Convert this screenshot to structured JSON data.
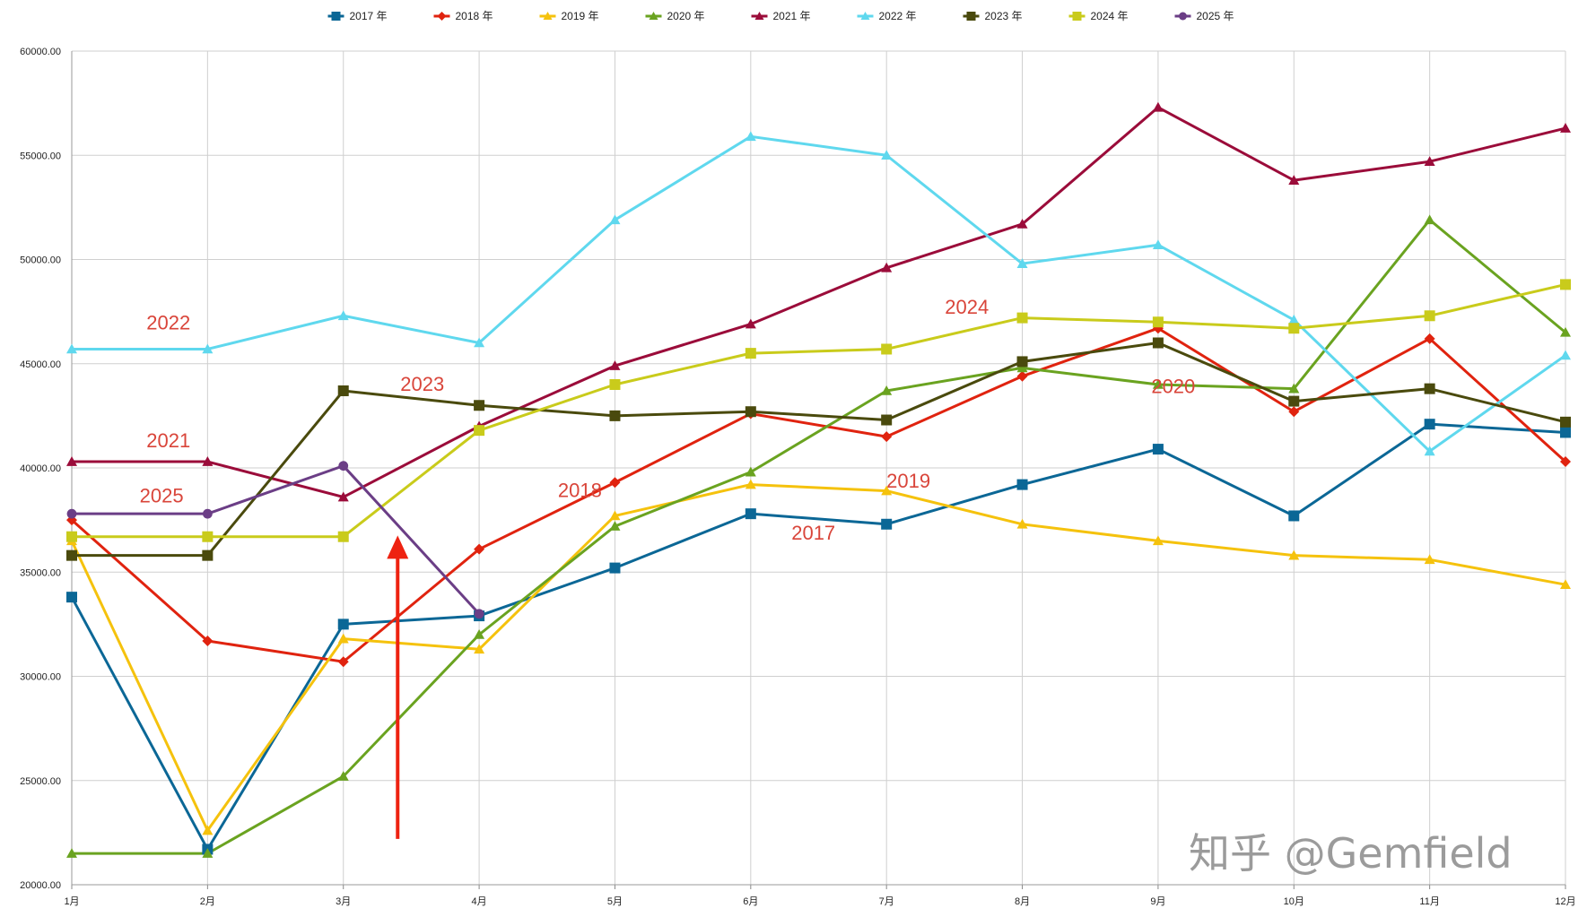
{
  "chart_data": {
    "type": "line",
    "title": "",
    "xlabel": "",
    "ylabel": "",
    "categories": [
      "1月",
      "2月",
      "3月",
      "4月",
      "5月",
      "6月",
      "7月",
      "8月",
      "9月",
      "10月",
      "11月",
      "12月"
    ],
    "ylim": [
      20000,
      60000
    ],
    "yticks": [
      20000,
      25000,
      30000,
      35000,
      40000,
      45000,
      50000,
      55000,
      60000
    ],
    "ytick_labels": [
      "20000.00",
      "25000.00",
      "30000.00",
      "35000.00",
      "40000.00",
      "45000.00",
      "50000.00",
      "55000.00",
      "60000.00"
    ],
    "grid": true,
    "legend_position": "top",
    "series": [
      {
        "name": "2017 年",
        "color": "#0b6796",
        "marker": "square",
        "values": [
          33800,
          21700,
          32500,
          32900,
          35200,
          37800,
          37300,
          39200,
          40900,
          37700,
          42100,
          41700
        ]
      },
      {
        "name": "2018 年",
        "color": "#e0230f",
        "marker": "diamond",
        "values": [
          37500,
          31700,
          30700,
          36100,
          39300,
          42600,
          41500,
          44400,
          46700,
          42700,
          46200,
          40300
        ]
      },
      {
        "name": "2019 年",
        "color": "#f5c20d",
        "marker": "triangle",
        "values": [
          36500,
          22600,
          31800,
          31300,
          37700,
          39200,
          38900,
          37300,
          36500,
          35800,
          35600,
          34400
        ]
      },
      {
        "name": "2020 年",
        "color": "#6aa320",
        "marker": "triangle",
        "values": [
          21500,
          21500,
          25200,
          32000,
          37200,
          39800,
          43700,
          44800,
          44000,
          43800,
          51900,
          46500
        ]
      },
      {
        "name": "2021 年",
        "color": "#9b0c3a",
        "marker": "triangle",
        "values": [
          40300,
          40300,
          38600,
          42000,
          44900,
          46900,
          49600,
          51700,
          57300,
          53800,
          54700,
          56300
        ]
      },
      {
        "name": "2022 年",
        "color": "#5fd8ee",
        "marker": "triangle",
        "values": [
          45700,
          45700,
          47300,
          46000,
          51900,
          55900,
          55000,
          49800,
          50700,
          47100,
          40800,
          45400
        ]
      },
      {
        "name": "2023 年",
        "color": "#4a4a0d",
        "marker": "square",
        "values": [
          35800,
          35800,
          43700,
          43000,
          42500,
          42700,
          42300,
          45100,
          46000,
          43200,
          43800,
          42200
        ]
      },
      {
        "name": "2024 年",
        "color": "#c9cb1b",
        "marker": "square",
        "values": [
          36700,
          36700,
          36700,
          41800,
          44000,
          45500,
          45700,
          47200,
          47000,
          46700,
          47300,
          48800
        ]
      },
      {
        "name": "2025 年",
        "color": "#6b3e86",
        "marker": "circle",
        "values": [
          37800,
          37800,
          40100,
          33000,
          null,
          null,
          null,
          null,
          null,
          null,
          null,
          null
        ]
      }
    ],
    "annotations": [
      {
        "text": "2022",
        "x_index": 0.55,
        "y": 46650,
        "color": "#d9453a"
      },
      {
        "text": "2021",
        "x_index": 0.55,
        "y": 41000,
        "color": "#d9453a"
      },
      {
        "text": "2025",
        "x_index": 0.5,
        "y": 38350,
        "color": "#d9453a"
      },
      {
        "text": "2023",
        "x_index": 2.42,
        "y": 43700,
        "color": "#d9453a"
      },
      {
        "text": "2018",
        "x_index": 3.58,
        "y": 38600,
        "color": "#d9453a"
      },
      {
        "text": "2017",
        "x_index": 5.3,
        "y": 36550,
        "color": "#d9453a"
      },
      {
        "text": "2019",
        "x_index": 6.0,
        "y": 39050,
        "color": "#d9453a"
      },
      {
        "text": "2024",
        "x_index": 6.43,
        "y": 47400,
        "color": "#d9453a"
      },
      {
        "text": "2020",
        "x_index": 7.95,
        "y": 43600,
        "color": "#d9453a"
      }
    ],
    "arrow": {
      "x_index": 2.4,
      "y_from": 22200,
      "y_to": 36500,
      "color": "#ee2211"
    }
  },
  "watermark": "知乎 @Gemfield"
}
